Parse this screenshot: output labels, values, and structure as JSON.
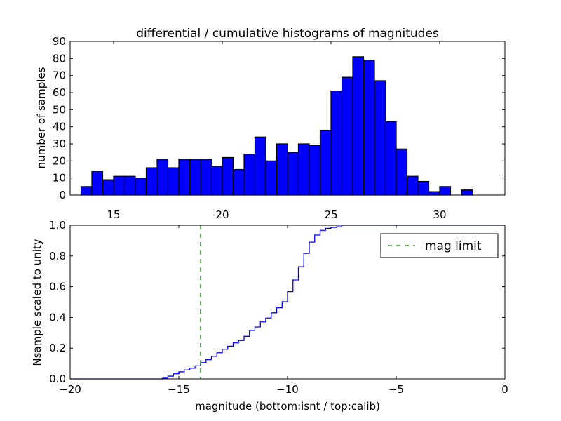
{
  "chart_data": [
    {
      "type": "bar",
      "title": "differential / cumulative histograms of magnitudes",
      "xlabel": "",
      "ylabel": "number of samples",
      "xlim": [
        13,
        33
      ],
      "ylim": [
        0,
        90
      ],
      "bin_width": 0.5,
      "bin_starts": [
        13.5,
        14,
        14.5,
        15,
        15.5,
        16,
        16.5,
        17,
        17.5,
        18,
        18.5,
        19,
        19.5,
        20,
        20.5,
        21,
        21.5,
        22,
        22.5,
        23,
        23.5,
        24,
        24.5,
        25,
        25.5,
        26,
        26.5,
        27,
        27.5,
        28,
        28.5,
        29,
        29.5,
        30,
        30.5,
        31
      ],
      "values": [
        5,
        14,
        9,
        11,
        11,
        10,
        16,
        21,
        16,
        21,
        21,
        21,
        17,
        22,
        15,
        24,
        34,
        20,
        30,
        25,
        30,
        29,
        38,
        61,
        69,
        81,
        79,
        67,
        43,
        27,
        11,
        8,
        2,
        5,
        0,
        3
      ],
      "xticks": [
        "15",
        "20",
        "25",
        "30"
      ],
      "xtick_values": [
        15,
        20,
        25,
        30
      ],
      "yticks": [
        "0",
        "10",
        "20",
        "30",
        "40",
        "50",
        "60",
        "70",
        "80",
        "90"
      ],
      "ytick_values": [
        0,
        10,
        20,
        30,
        40,
        50,
        60,
        70,
        80,
        90
      ],
      "bar_color": "#0000ff"
    },
    {
      "type": "line",
      "xlabel": "magnitude (bottom:isnt / top:calib)",
      "ylabel": "Nsample scaled to unity",
      "xlim": [
        -20,
        0
      ],
      "ylim": [
        0,
        1
      ],
      "step_start": -15.75,
      "step_width": 0.25,
      "cdf": [
        0.005,
        0.018,
        0.033,
        0.046,
        0.058,
        0.07,
        0.085,
        0.106,
        0.125,
        0.147,
        0.17,
        0.193,
        0.213,
        0.234,
        0.25,
        0.277,
        0.315,
        0.338,
        0.371,
        0.396,
        0.43,
        0.463,
        0.502,
        0.568,
        0.644,
        0.73,
        0.817,
        0.89,
        0.936,
        0.967,
        0.98,
        0.986,
        0.99,
        1.0
      ],
      "line_color": "#0000ff",
      "mag_limit": -14,
      "mag_limit_color": "#008000",
      "legend": {
        "label": "mag limit",
        "placement": "upper-right"
      },
      "xticks": [
        "−20",
        "−15",
        "−10",
        "−5",
        "0"
      ],
      "xtick_values": [
        -20,
        -15,
        -10,
        -5,
        0
      ],
      "yticks": [
        "0.0",
        "0.2",
        "0.4",
        "0.6",
        "0.8",
        "1.0"
      ],
      "ytick_values": [
        0,
        0.2,
        0.4,
        0.6,
        0.8,
        1.0
      ]
    }
  ]
}
